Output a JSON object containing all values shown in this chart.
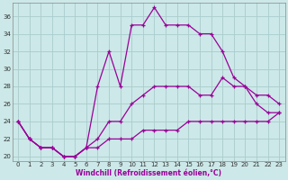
{
  "xlabel": "Windchill (Refroidissement éolien,°C)",
  "background_color": "#cce8e8",
  "grid_color": "#aacccc",
  "line_color": "#990099",
  "hours": [
    0,
    1,
    2,
    3,
    4,
    5,
    6,
    7,
    8,
    9,
    10,
    11,
    12,
    13,
    14,
    15,
    16,
    17,
    18,
    19,
    20,
    21,
    22,
    23
  ],
  "temp": [
    24,
    22,
    21,
    21,
    20,
    20,
    21,
    28,
    32,
    28,
    35,
    35,
    37,
    35,
    35,
    35,
    34,
    34,
    32,
    29,
    28,
    26,
    25,
    25
  ],
  "windchill": [
    24,
    22,
    21,
    21,
    20,
    20,
    21,
    22,
    24,
    24,
    26,
    27,
    28,
    28,
    28,
    28,
    27,
    27,
    29,
    28,
    28,
    27,
    27,
    26
  ],
  "line2": [
    24,
    22,
    21,
    21,
    20,
    20,
    21,
    21,
    22,
    22,
    22,
    23,
    23,
    23,
    23,
    24,
    24,
    24,
    24,
    24,
    24,
    24,
    24,
    25
  ],
  "ylim": [
    19.5,
    37.5
  ],
  "xlim": [
    -0.5,
    23.5
  ],
  "yticks": [
    20,
    22,
    24,
    26,
    28,
    30,
    32,
    34,
    36
  ],
  "xticks": [
    0,
    1,
    2,
    3,
    4,
    5,
    6,
    7,
    8,
    9,
    10,
    11,
    12,
    13,
    14,
    15,
    16,
    17,
    18,
    19,
    20,
    21,
    22,
    23
  ],
  "xlabel_fontsize": 5.5,
  "tick_fontsize": 5,
  "linewidth": 0.9,
  "markersize": 3
}
